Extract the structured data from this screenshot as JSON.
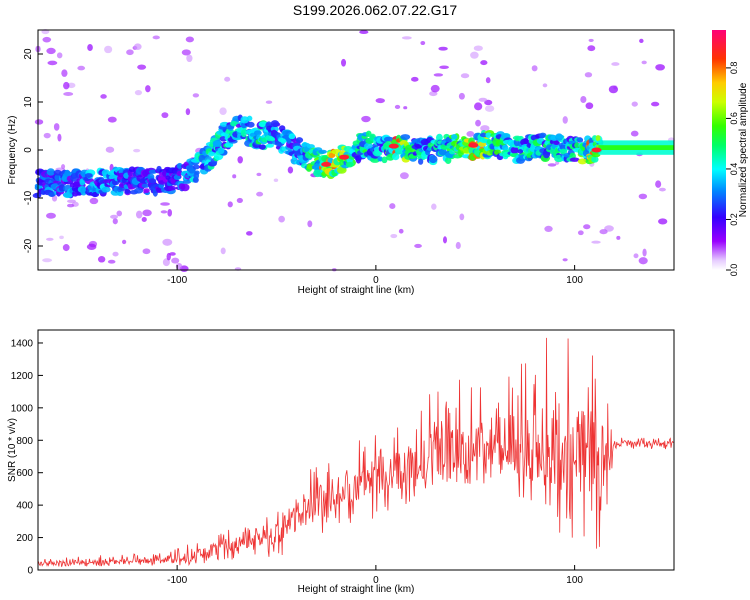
{
  "figure_title": "S199.2026.062.07.22.G17",
  "chart_data": [
    {
      "type": "heatmap",
      "title": "S199.2026.062.07.22.G17",
      "xlabel": "Height of straight line (km)",
      "ylabel": "Frequency (Hz)",
      "xlim": [
        -170,
        150
      ],
      "ylim": [
        -25,
        25
      ],
      "xticks": [
        -100,
        0,
        100
      ],
      "xtick_labels": [
        "-100",
        "0",
        "100"
      ],
      "yticks": [
        -20,
        -10,
        0,
        10,
        20
      ],
      "ytick_labels": [
        "-20",
        "-10",
        "0",
        "10",
        "20"
      ],
      "colorbar": {
        "label": "Normalized spectral amplitude",
        "range": [
          0.0,
          0.95
        ],
        "ticks": [
          0.0,
          0.2,
          0.4,
          0.6,
          0.8
        ],
        "tick_labels": [
          "0.0",
          "0.2",
          "0.4",
          "0.6",
          "0.8"
        ],
        "colormap": "rainbow (white-purple-blue-cyan-green-yellow-red-magenta)"
      },
      "ridge": {
        "description": "Dominant frequency ridge vs height",
        "x": [
          -170,
          -150,
          -130,
          -110,
          -95,
          -85,
          -75,
          -68,
          -60,
          -50,
          -40,
          -32,
          -25,
          -18,
          -10,
          -5,
          0,
          5,
          10,
          20,
          30,
          40,
          50,
          60,
          70,
          80,
          90,
          100,
          110,
          120,
          130,
          150
        ],
        "y": [
          -7,
          -7,
          -6.5,
          -6.5,
          -5.5,
          -2,
          3,
          5,
          3,
          3,
          0,
          -2,
          -3,
          -2,
          0,
          1.5,
          0,
          0,
          0.5,
          0,
          0,
          0.5,
          1,
          1.5,
          0,
          0.5,
          1,
          0,
          0,
          0.5,
          0.5,
          0.5
        ],
        "peak_amplitude": [
          0.35,
          0.4,
          0.4,
          0.3,
          0.4,
          0.5,
          0.5,
          0.45,
          0.55,
          0.45,
          0.4,
          0.6,
          0.9,
          0.9,
          0.5,
          0.6,
          0.5,
          0.5,
          0.9,
          0.5,
          0.5,
          0.6,
          0.9,
          0.6,
          0.5,
          0.6,
          0.5,
          0.5,
          0.9,
          0.6,
          0.55,
          0.55
        ]
      }
    },
    {
      "type": "line",
      "xlabel": "Height of straight line (km)",
      "ylabel": "SNR (10 * v/v)",
      "xlim": [
        -170,
        150
      ],
      "ylim": [
        0,
        1480
      ],
      "xticks": [
        -100,
        0,
        100
      ],
      "xtick_labels": [
        "-100",
        "0",
        "100"
      ],
      "yticks": [
        0,
        200,
        400,
        600,
        800,
        1000,
        1200,
        1400
      ],
      "ytick_labels": [
        "0",
        "200",
        "400",
        "600",
        "800",
        "1000",
        "1200",
        "1400"
      ],
      "series": [
        {
          "name": "SNR",
          "color": "#ee3333",
          "envelope_x": [
            -170,
            -140,
            -110,
            -90,
            -80,
            -70,
            -60,
            -50,
            -40,
            -30,
            -20,
            -10,
            0,
            10,
            20,
            30,
            40,
            50,
            60,
            70,
            80,
            90,
            100,
            110,
            114,
            120,
            130,
            140,
            150
          ],
          "envelope_mean": [
            40,
            50,
            60,
            90,
            130,
            160,
            170,
            230,
            320,
            410,
            470,
            540,
            570,
            610,
            660,
            720,
            750,
            760,
            770,
            760,
            750,
            750,
            720,
            700,
            700,
            780,
            780,
            780,
            780
          ],
          "envelope_min": [
            15,
            20,
            25,
            30,
            40,
            60,
            60,
            80,
            120,
            200,
            250,
            300,
            320,
            350,
            420,
            480,
            500,
            520,
            500,
            450,
            350,
            250,
            150,
            100,
            150,
            740,
            745,
            745,
            745
          ],
          "envelope_max": [
            70,
            90,
            110,
            180,
            230,
            290,
            270,
            380,
            560,
            650,
            720,
            800,
            840,
            880,
            1000,
            1120,
            1200,
            1230,
            1250,
            1320,
            1400,
            1480,
            1460,
            1330,
            1250,
            820,
            815,
            815,
            815
          ]
        }
      ]
    }
  ]
}
